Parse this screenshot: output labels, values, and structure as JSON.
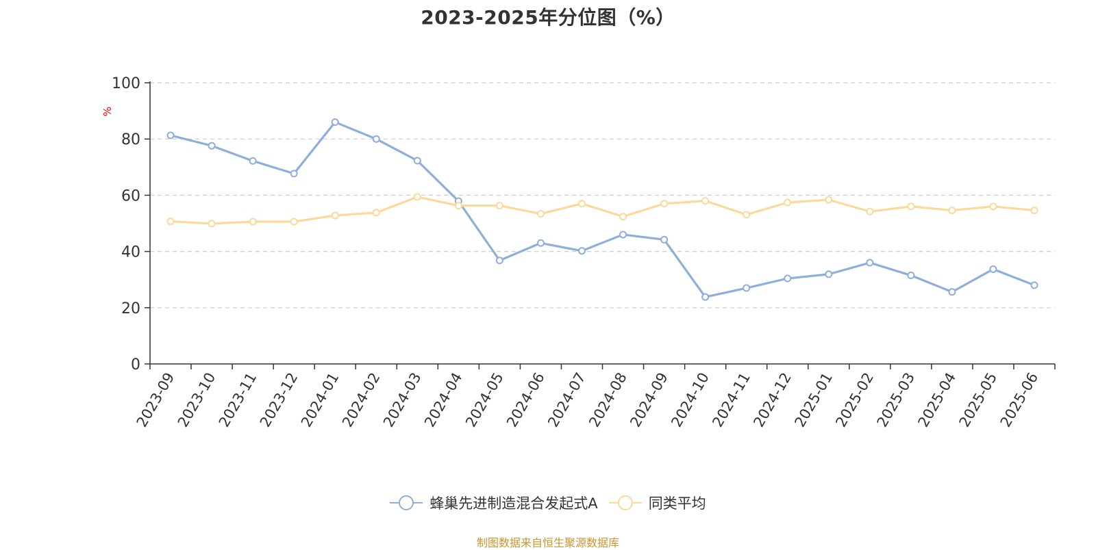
{
  "chart_data": {
    "type": "line",
    "title": "2023-2025年分位图（%）",
    "ylabel": "%",
    "ylim": [
      0,
      100
    ],
    "yticks": [
      0,
      20,
      40,
      60,
      80,
      100
    ],
    "grid": true,
    "legend_position": "bottom",
    "categories": [
      "2023-09",
      "2023-10",
      "2023-11",
      "2023-12",
      "2024-01",
      "2024-02",
      "2024-03",
      "2024-04",
      "2024-05",
      "2024-06",
      "2024-07",
      "2024-08",
      "2024-09",
      "2024-10",
      "2024-11",
      "2024-12",
      "2025-01",
      "2025-02",
      "2025-03",
      "2025-04",
      "2025-05",
      "2025-06"
    ],
    "series": [
      {
        "name": "蜂巢先进制造混合发起式A",
        "color": "#8eaedb",
        "values": [
          81.3,
          77.6,
          72.2,
          67.7,
          86.0,
          80.0,
          72.3,
          57.9,
          36.8,
          43.0,
          40.2,
          46.0,
          44.2,
          23.8,
          27.0,
          30.4,
          31.9,
          36.0,
          31.5,
          25.6,
          33.7,
          28.0
        ]
      },
      {
        "name": "同类平均",
        "color": "#fbd99a",
        "values": [
          50.7,
          49.9,
          50.6,
          50.6,
          52.8,
          53.8,
          59.4,
          56.3,
          56.3,
          53.4,
          57.0,
          52.4,
          57.0,
          58.0,
          53.1,
          57.4,
          58.4,
          54.2,
          56.0,
          54.6,
          56.0,
          54.6
        ]
      }
    ]
  },
  "source_text": "制图数据来自恒生聚源数据库"
}
